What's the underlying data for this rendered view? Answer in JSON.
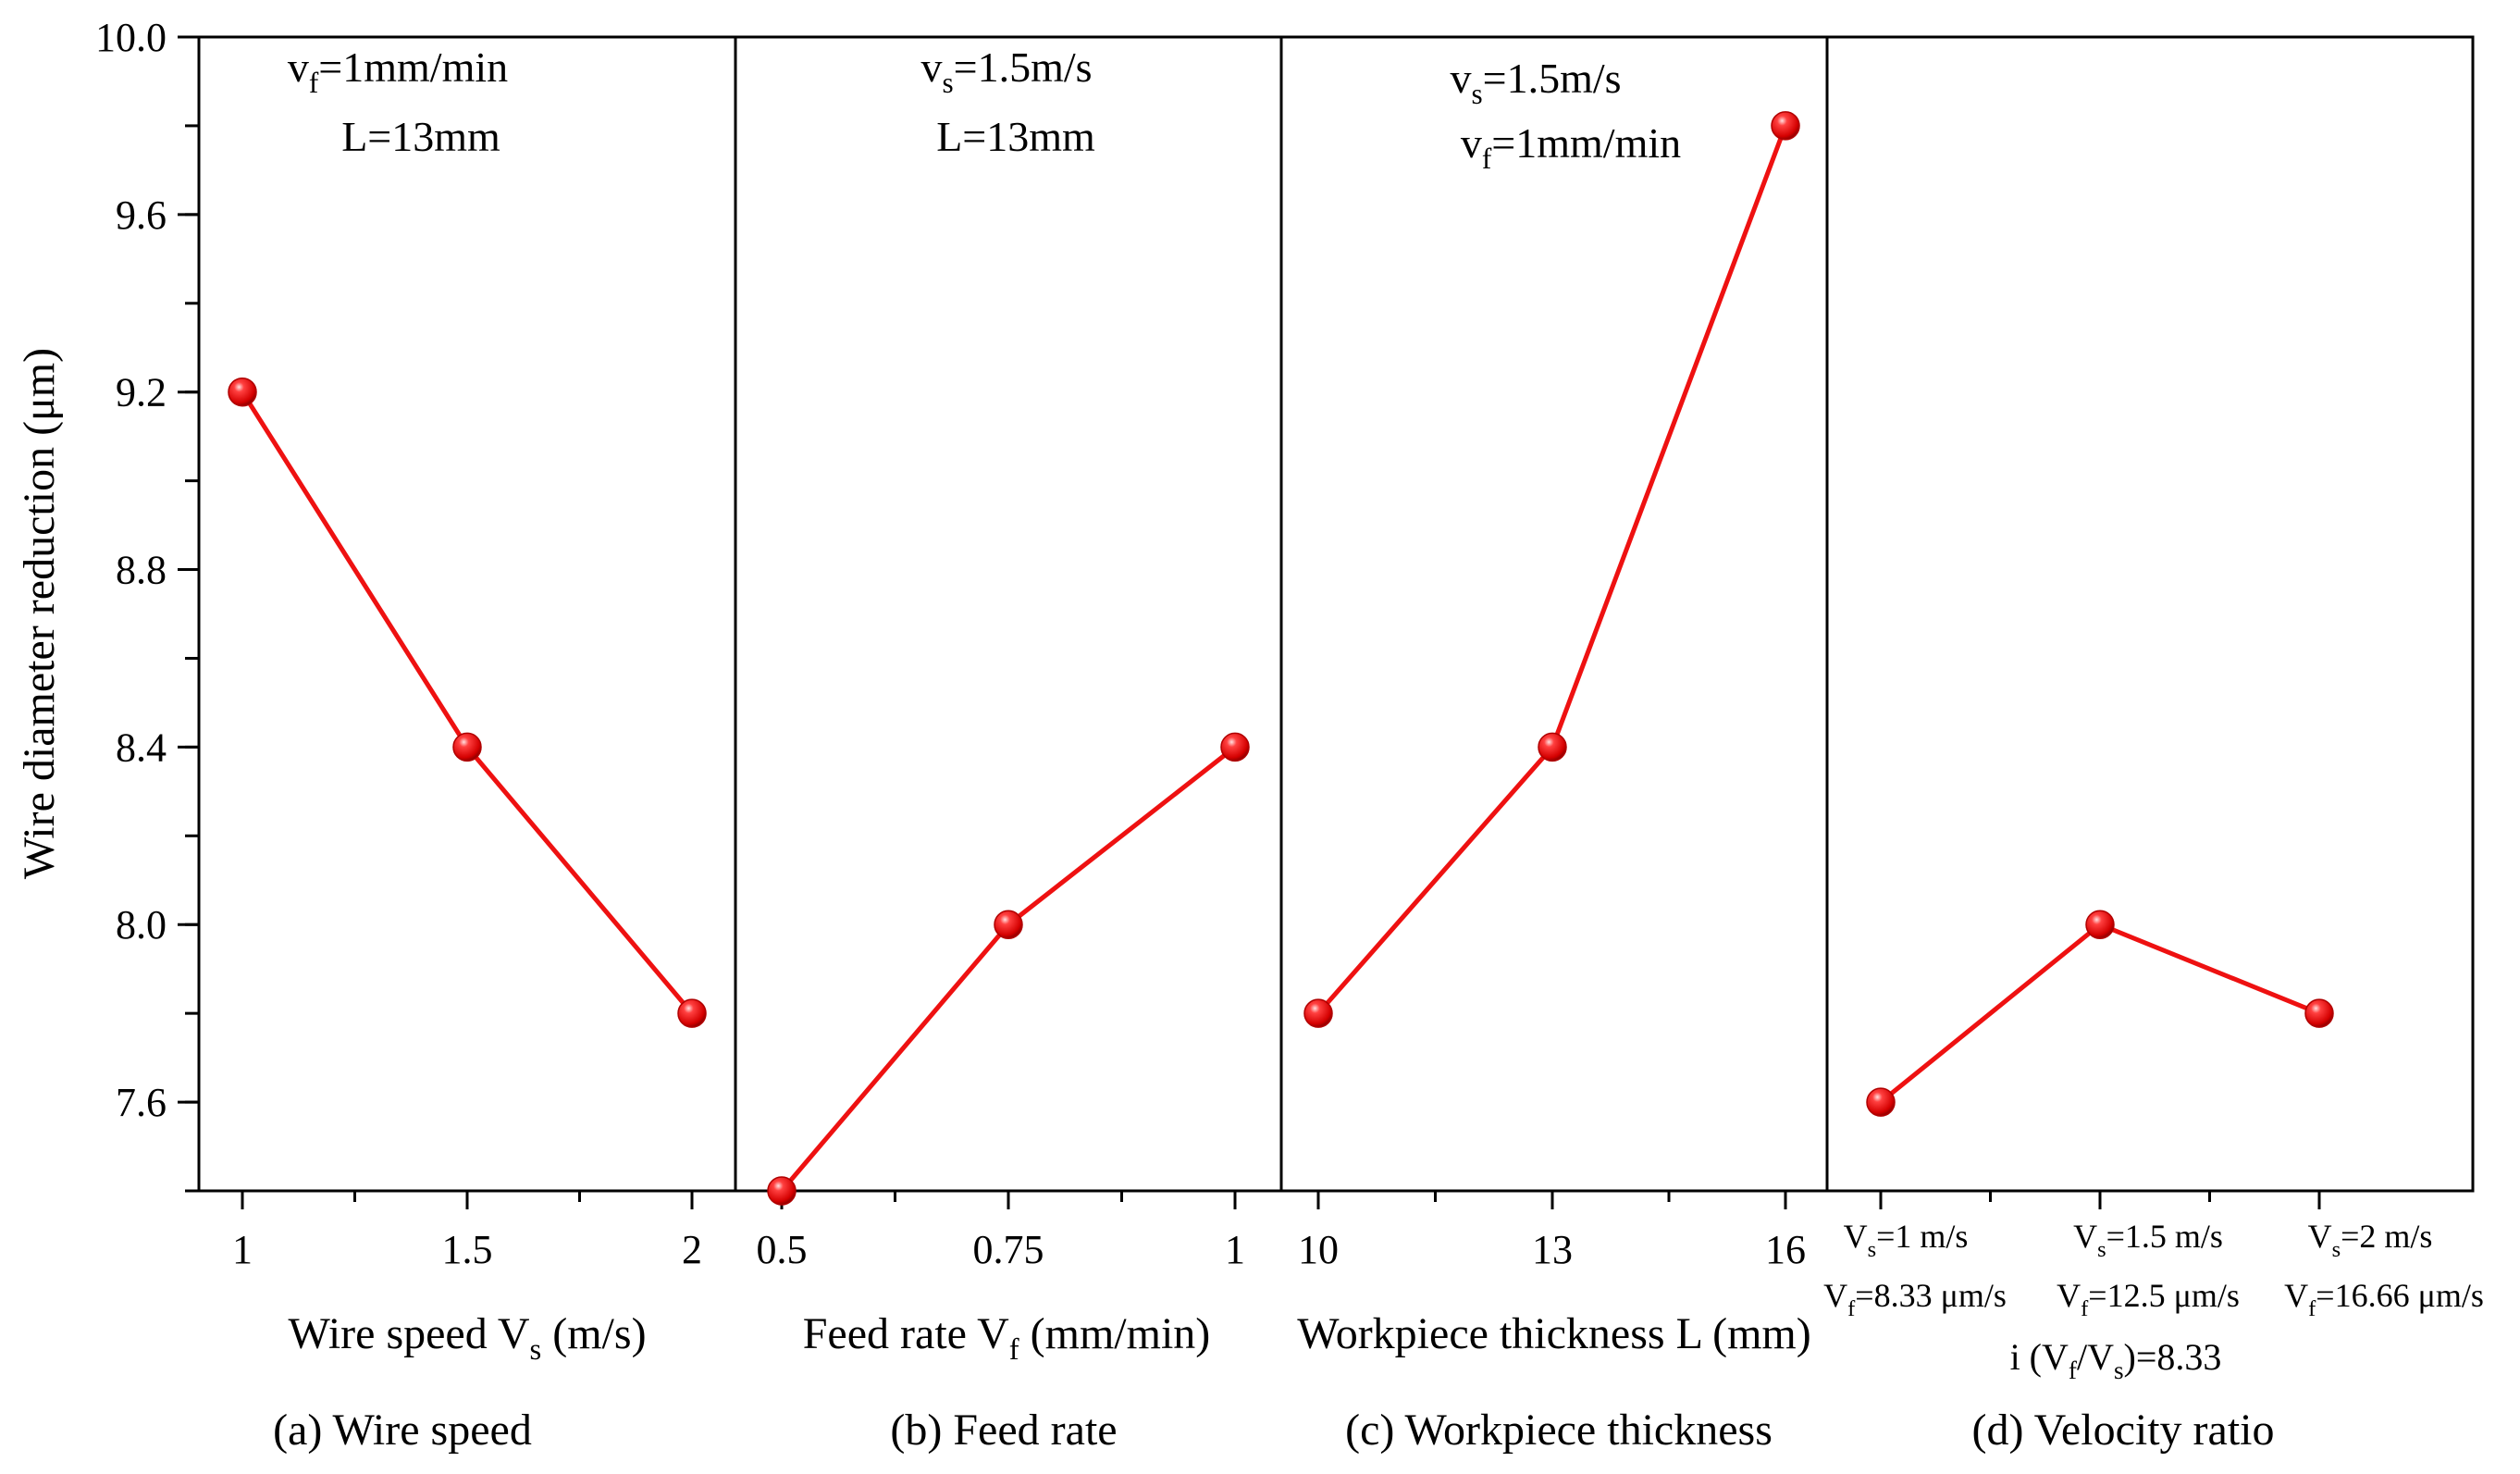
{
  "chart_data": {
    "type": "line",
    "ylabel": "Wire diameter reduction (μm)",
    "ylim": [
      7.4,
      10.0
    ],
    "y_ticks": [
      "7.6",
      "8.0",
      "8.4",
      "8.8",
      "9.2",
      "9.6",
      "10.0"
    ],
    "series_color": "#ee1111",
    "panels": [
      {
        "id": "a",
        "x_ticks": [
          "1",
          "1.5",
          "2"
        ],
        "values": [
          9.2,
          8.4,
          7.8
        ],
        "xlabel_main": "Wire speed V",
        "xlabel_sub": "s",
        "xlabel_tail": " (m/s)",
        "caption": "(a) Wire speed",
        "cond1_sym": "v",
        "cond1_sub": "f",
        "cond1_rest": "=1mm/min",
        "cond2": "L=13mm"
      },
      {
        "id": "b",
        "x_ticks": [
          "0.5",
          "0.75",
          "1"
        ],
        "values": [
          7.4,
          8.0,
          8.4
        ],
        "xlabel_main": "Feed rate V",
        "xlabel_sub": "f",
        "xlabel_tail": " (mm/min)",
        "caption": "(b) Feed rate",
        "cond1_sym": "v",
        "cond1_sub": "s",
        "cond1_rest": "=1.5m/s",
        "cond2": "L=13mm"
      },
      {
        "id": "c",
        "x_ticks": [
          "10",
          "13",
          "16"
        ],
        "values": [
          7.8,
          8.4,
          9.8
        ],
        "xlabel": "Workpiece thickness L (mm)",
        "caption": "(c) Workpiece thickness",
        "cond1_sym": "v",
        "cond1_sub": "s",
        "cond1_rest": "=1.5m/s",
        "cond2_sym": "v",
        "cond2_sub": "f",
        "cond2_rest": "=1mm/min"
      },
      {
        "id": "d",
        "values": [
          7.6,
          8.0,
          7.8
        ],
        "x_cats": [
          {
            "vs": "=1 m/s",
            "vf": "=8.33 μm/s"
          },
          {
            "vs": "=1.5 m/s",
            "vf": "=12.5 μm/s"
          },
          {
            "vs": "=2 m/s",
            "vf": "=16.66 μm/s"
          }
        ],
        "ratio_prefix": "i (V",
        "ratio_sub1": "f",
        "ratio_mid": "/V",
        "ratio_sub2": "s",
        "ratio_tail": ")=8.33",
        "caption": "(d) Velocity ratio"
      }
    ]
  }
}
